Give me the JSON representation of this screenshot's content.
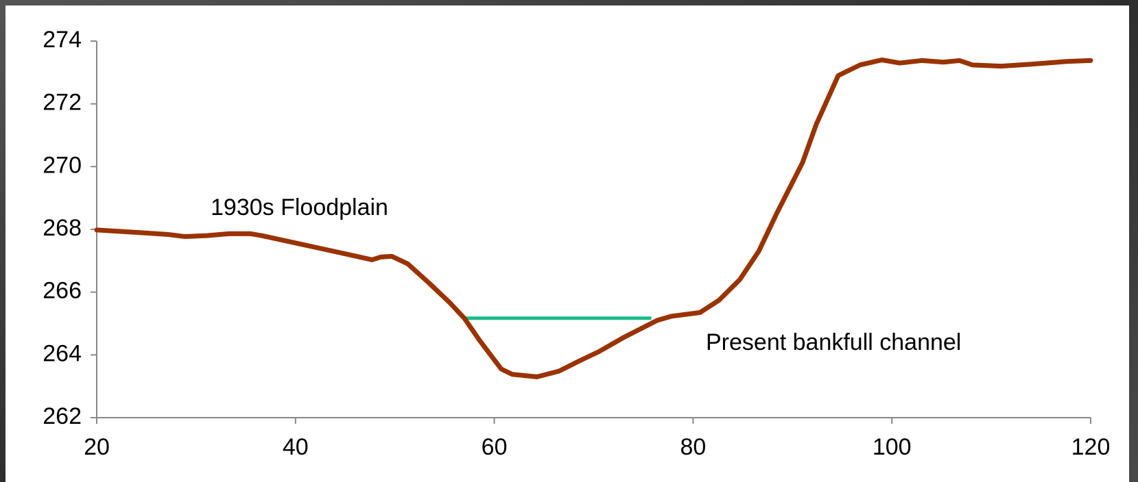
{
  "chart_data": {
    "type": "line",
    "x": [
      20,
      24.2,
      27.1,
      28.9,
      31.1,
      33.3,
      35.5,
      36.6,
      39.5,
      42.4,
      45.3,
      47.7,
      48.6,
      49.7,
      51.3,
      53.4,
      55.5,
      57.0,
      58.5,
      60.7,
      61.8,
      64.3,
      66.5,
      68.7,
      70.5,
      73.1,
      76.4,
      77.8,
      80.7,
      82.6,
      84.7,
      86.6,
      88.4,
      91.0,
      92.4,
      94.6,
      96.8,
      99.0,
      100.8,
      103.0,
      105.2,
      106.8,
      108.1,
      111.0,
      113.9,
      117.6,
      120
    ],
    "series": [
      {
        "color": "#993300",
        "values": [
          267.98,
          267.9,
          267.84,
          267.77,
          267.8,
          267.86,
          267.86,
          267.8,
          267.6,
          267.4,
          267.2,
          267.03,
          267.12,
          267.14,
          266.9,
          266.3,
          265.67,
          265.16,
          264.47,
          263.55,
          263.38,
          263.3,
          263.48,
          263.83,
          264.1,
          264.57,
          265.1,
          265.23,
          265.35,
          265.74,
          266.4,
          267.3,
          268.5,
          270.12,
          271.35,
          272.9,
          273.24,
          273.4,
          273.3,
          273.38,
          273.33,
          273.38,
          273.24,
          273.2,
          273.26,
          273.35,
          273.38
        ]
      }
    ],
    "reference_line": {
      "y": 265.17,
      "x": [
        57,
        75.8
      ],
      "color": "#1abc8c"
    },
    "annotations": [
      "1930s Floodplain",
      "Present bankfull channel"
    ],
    "xlim": [
      20,
      120
    ],
    "xticks": [
      20,
      40,
      60,
      80,
      100,
      120
    ],
    "ylim": [
      262,
      274
    ],
    "yticks": [
      262,
      264,
      266,
      268,
      270,
      272,
      274
    ],
    "grid": false
  }
}
